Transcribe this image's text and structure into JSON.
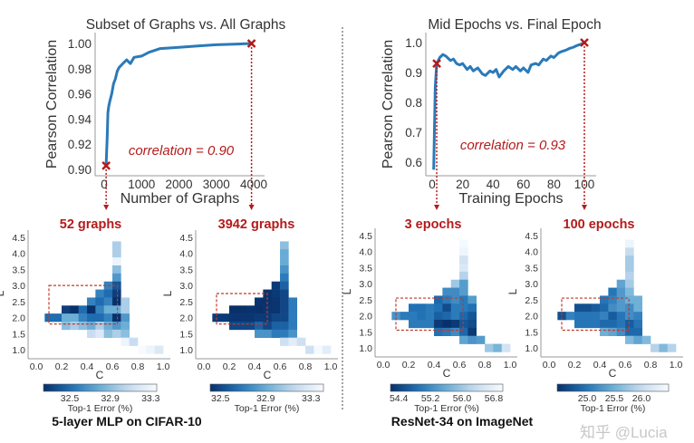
{
  "colors": {
    "line": "#2a7ab9",
    "accent": "#b31b1b",
    "axis": "#9a9a9a",
    "text": "#333333",
    "colormap": [
      "#08306b",
      "#2171b5",
      "#6baed6",
      "#c6dbef",
      "#f7fbff"
    ]
  },
  "watermark": "知乎 @Lucia",
  "groups": [
    {
      "label": "5-layer MLP on CIFAR-10"
    },
    {
      "label": "ResNet-34 on ImageNet"
    }
  ],
  "chart_data": [
    {
      "type": "line",
      "title": "Subset of Graphs vs. All Graphs",
      "xlabel": "Number of Graphs",
      "ylabel": "Pearson Correlation",
      "xticks": [
        0,
        1000,
        2000,
        3000,
        4000
      ],
      "yticks": [
        0.9,
        0.92,
        0.94,
        0.96,
        0.98,
        1.0
      ],
      "ytick_labels": [
        "0.90",
        "0.92",
        "0.94",
        "0.96",
        "0.98",
        "1.00"
      ],
      "annotation": "correlation = 0.90",
      "x": [
        52,
        80,
        100,
        120,
        150,
        200,
        250,
        300,
        350,
        400,
        500,
        600,
        700,
        800,
        1000,
        1200,
        1500,
        2000,
        2500,
        3000,
        3500,
        3942
      ],
      "y": [
        0.903,
        0.925,
        0.945,
        0.95,
        0.954,
        0.96,
        0.968,
        0.972,
        0.978,
        0.981,
        0.984,
        0.987,
        0.984,
        0.989,
        0.99,
        0.993,
        0.996,
        0.997,
        0.998,
        0.999,
        0.9995,
        1.0
      ],
      "markers": [
        {
          "x": 52,
          "y": 0.903
        },
        {
          "x": 3942,
          "y": 1.0
        }
      ]
    },
    {
      "type": "line",
      "title": "Mid Epochs vs. Final Epoch",
      "xlabel": "Training Epochs",
      "ylabel": "Pearson Correlation",
      "xticks": [
        0,
        20,
        40,
        60,
        80,
        100
      ],
      "yticks": [
        0.6,
        0.7,
        0.8,
        0.9,
        1.0
      ],
      "ytick_labels": [
        "0.6",
        "0.7",
        "0.8",
        "0.9",
        "1.0"
      ],
      "annotation": "correlation = 0.93",
      "x": [
        1,
        2,
        3,
        5,
        7,
        9,
        12,
        14,
        16,
        18,
        20,
        23,
        25,
        27,
        30,
        33,
        35,
        38,
        40,
        42,
        44,
        47,
        50,
        53,
        55,
        58,
        60,
        63,
        65,
        68,
        70,
        73,
        75,
        78,
        80,
        83,
        85,
        88,
        90,
        93,
        95,
        98,
        100
      ],
      "y": [
        0.575,
        0.85,
        0.93,
        0.95,
        0.96,
        0.955,
        0.94,
        0.945,
        0.93,
        0.925,
        0.93,
        0.91,
        0.92,
        0.905,
        0.915,
        0.895,
        0.89,
        0.905,
        0.9,
        0.91,
        0.885,
        0.905,
        0.92,
        0.91,
        0.92,
        0.905,
        0.915,
        0.9,
        0.925,
        0.93,
        0.925,
        0.945,
        0.94,
        0.955,
        0.95,
        0.965,
        0.97,
        0.975,
        0.98,
        0.985,
        0.99,
        0.995,
        1.0
      ],
      "markers": [
        {
          "x": 3,
          "y": 0.93
        },
        {
          "x": 100,
          "y": 1.0
        }
      ]
    },
    {
      "type": "heatmap",
      "title": "52 graphs",
      "xlabel": "C",
      "ylabel": "L",
      "xticks": [
        "0.0",
        "0.2",
        "0.4",
        "0.6",
        "0.8",
        "1.0"
      ],
      "yticks": [
        "1.0",
        "1.5",
        "2.0",
        "2.5",
        "3.0",
        "3.5",
        "4.0",
        "4.5"
      ],
      "cell_width": 0.0667,
      "cell_height": 0.25,
      "colorbar": {
        "label": "Top-1 Error (%)",
        "range": [
          32.24,
          33.36
        ],
        "ticks": [
          "32.5",
          "32.9",
          "33.3"
        ]
      },
      "highlight_box": {
        "C": [
          0.1,
          0.64
        ],
        "L": [
          1.8,
          3.0
        ]
      },
      "rows": [
        {
          "L": 4.25,
          "k0": 9,
          "v": [
            33.0
          ]
        },
        {
          "L": 4.0,
          "k0": 9,
          "v": [
            33.0
          ]
        },
        {
          "L": 3.75,
          "k0": 9,
          "v": [
            33.3
          ]
        },
        {
          "L": 3.5,
          "k0": 9,
          "v": [
            32.9
          ]
        },
        {
          "L": 3.25,
          "k0": 9,
          "v": [
            32.7
          ]
        },
        {
          "L": 3.0,
          "k0": 8,
          "v": [
            32.6,
            32.4
          ]
        },
        {
          "L": 2.75,
          "k0": 7,
          "v": [
            32.6,
            32.5,
            32.3
          ]
        },
        {
          "L": 2.5,
          "k0": 6,
          "v": [
            32.6,
            32.5,
            32.6,
            32.2,
            33.0
          ]
        },
        {
          "L": 2.25,
          "k0": 3,
          "v": [
            32.3,
            32.2,
            32.5,
            32.2,
            32.6,
            32.8,
            32.8,
            33.0
          ]
        },
        {
          "L": 2.0,
          "k0": 1,
          "v": [
            32.5,
            32.5,
            32.8,
            32.8,
            32.6,
            32.5,
            32.5,
            32.6,
            32.2,
            32.7
          ]
        },
        {
          "L": 1.75,
          "k0": 3,
          "v": [
            32.9,
            33.0,
            32.9,
            32.8,
            33.0,
            32.8,
            32.7,
            32.8
          ]
        },
        {
          "L": 1.5,
          "k0": 6,
          "v": [
            33.1,
            33.2,
            32.9,
            33.0,
            32.9
          ]
        },
        {
          "L": 1.25,
          "k0": 10,
          "v": [
            33.3,
            33.1
          ]
        },
        {
          "L": 1.0,
          "k0": 12,
          "v": [
            33.4,
            33.3,
            33.2
          ]
        }
      ]
    },
    {
      "type": "heatmap",
      "title": "3942 graphs",
      "xlabel": "C",
      "ylabel": "L",
      "xticks": [
        "0.0",
        "0.2",
        "0.4",
        "0.6",
        "0.8",
        "1.0"
      ],
      "yticks": [
        "1.0",
        "1.5",
        "2.0",
        "2.5",
        "3.0",
        "3.5",
        "4.0",
        "4.5"
      ],
      "cell_width": 0.0667,
      "cell_height": 0.25,
      "colorbar": {
        "label": "Top-1 Error (%)",
        "range": [
          32.41,
          33.41
        ],
        "ticks": [
          "32.5",
          "32.9",
          "33.3"
        ]
      },
      "highlight_box": {
        "C": [
          0.1,
          0.5
        ],
        "L": [
          1.8,
          2.75
        ]
      },
      "rows": [
        {
          "L": 4.25,
          "k0": 9,
          "v": [
            33.0
          ]
        },
        {
          "L": 4.0,
          "k0": 9,
          "v": [
            32.9
          ]
        },
        {
          "L": 3.75,
          "k0": 9,
          "v": [
            32.9
          ]
        },
        {
          "L": 3.5,
          "k0": 9,
          "v": [
            32.8
          ]
        },
        {
          "L": 3.25,
          "k0": 9,
          "v": [
            32.7
          ]
        },
        {
          "L": 3.0,
          "k0": 8,
          "v": [
            32.45,
            32.6
          ]
        },
        {
          "L": 2.75,
          "k0": 7,
          "v": [
            32.42,
            32.45,
            32.5
          ]
        },
        {
          "L": 2.5,
          "k0": 6,
          "v": [
            32.42,
            32.42,
            32.43,
            32.5,
            32.7
          ]
        },
        {
          "L": 2.25,
          "k0": 3,
          "v": [
            32.41,
            32.41,
            32.42,
            32.41,
            32.43,
            32.43,
            32.5,
            32.7
          ]
        },
        {
          "L": 2.0,
          "k0": 1,
          "v": [
            32.45,
            32.45,
            32.43,
            32.43,
            32.43,
            32.45,
            32.45,
            32.5,
            32.5,
            32.7
          ]
        },
        {
          "L": 1.75,
          "k0": 3,
          "v": [
            32.5,
            32.5,
            32.5,
            32.6,
            32.5,
            32.6,
            32.6,
            32.7
          ]
        },
        {
          "L": 1.5,
          "k0": 6,
          "v": [
            32.8,
            32.8,
            32.7,
            32.7,
            32.8
          ]
        },
        {
          "L": 1.25,
          "k0": 9,
          "v": [
            33.2,
            33.3,
            33.2
          ]
        },
        {
          "L": 1.0,
          "k0": 12,
          "v": [
            33.2,
            33.4,
            33.3
          ]
        }
      ]
    },
    {
      "type": "heatmap",
      "title": "3 epochs",
      "xlabel": "C",
      "ylabel": "L",
      "xticks": [
        "0.0",
        "0.2",
        "0.4",
        "0.6",
        "0.8",
        "1.0"
      ],
      "yticks": [
        "1.0",
        "1.5",
        "2.0",
        "2.5",
        "3.0",
        "3.5",
        "4.0",
        "4.5"
      ],
      "cell_width": 0.0667,
      "cell_height": 0.25,
      "colorbar": {
        "label": "Top-1 Error (%)",
        "range": [
          54.19,
          57.03
        ],
        "ticks": [
          "54.4",
          "55.2",
          "56.0",
          "56.8"
        ]
      },
      "highlight_box": {
        "C": [
          0.1,
          0.63
        ],
        "L": [
          1.55,
          2.55
        ]
      },
      "rows": [
        {
          "L": 4.25,
          "k0": 9,
          "v": [
            57.0
          ]
        },
        {
          "L": 4.0,
          "k0": 9,
          "v": [
            56.9
          ]
        },
        {
          "L": 3.75,
          "k0": 9,
          "v": [
            56.5
          ]
        },
        {
          "L": 3.5,
          "k0": 9,
          "v": [
            56.6
          ]
        },
        {
          "L": 3.25,
          "k0": 9,
          "v": [
            56.2
          ]
        },
        {
          "L": 3.0,
          "k0": 8,
          "v": [
            56.0,
            55.4
          ]
        },
        {
          "L": 2.75,
          "k0": 7,
          "v": [
            55.2,
            55.2,
            55.4
          ]
        },
        {
          "L": 2.5,
          "k0": 6,
          "v": [
            54.8,
            55.0,
            55.2,
            55.0,
            55.4
          ]
        },
        {
          "L": 2.25,
          "k0": 3,
          "v": [
            54.9,
            54.9,
            55.0,
            54.9,
            54.5,
            55.0,
            55.0,
            54.9
          ]
        },
        {
          "L": 2.0,
          "k0": 1,
          "v": [
            55.3,
            55.0,
            55.0,
            54.9,
            55.0,
            54.7,
            54.8,
            55.0,
            54.8,
            54.6
          ]
        },
        {
          "L": 1.75,
          "k0": 3,
          "v": [
            55.0,
            55.0,
            55.0,
            54.3,
            54.2,
            54.3,
            54.6,
            54.5
          ]
        },
        {
          "L": 1.5,
          "k0": 6,
          "v": [
            54.9,
            55.0,
            55.2,
            54.8,
            54.3
          ]
        },
        {
          "L": 1.25,
          "k0": 9,
          "v": [
            55.5,
            55.3,
            55.4
          ]
        },
        {
          "L": 1.0,
          "k0": 12,
          "v": [
            56.0,
            55.7,
            56.5
          ]
        }
      ]
    },
    {
      "type": "heatmap",
      "title": "100 epochs",
      "xlabel": "C",
      "ylabel": "L",
      "xticks": [
        "0.0",
        "0.2",
        "0.4",
        "0.6",
        "0.8",
        "1.0"
      ],
      "yticks": [
        "1.0",
        "1.5",
        "2.0",
        "2.5",
        "3.0",
        "3.5",
        "4.0",
        "4.5"
      ],
      "cell_width": 0.0667,
      "cell_height": 0.25,
      "colorbar": {
        "label": "Top-1 Error (%)",
        "range": [
          24.45,
          26.5
        ],
        "ticks": [
          "25.0",
          "25.5",
          "26.0"
        ]
      },
      "highlight_box": {
        "C": [
          0.1,
          0.63
        ],
        "L": [
          1.55,
          2.55
        ]
      },
      "rows": [
        {
          "L": 4.25,
          "k0": 9,
          "v": [
            26.4
          ]
        },
        {
          "L": 4.0,
          "k0": 9,
          "v": [
            26.0
          ]
        },
        {
          "L": 3.75,
          "k0": 9,
          "v": [
            25.8
          ]
        },
        {
          "L": 3.5,
          "k0": 9,
          "v": [
            25.8
          ]
        },
        {
          "L": 3.25,
          "k0": 9,
          "v": [
            25.9
          ]
        },
        {
          "L": 3.0,
          "k0": 8,
          "v": [
            25.4,
            25.8
          ]
        },
        {
          "L": 2.75,
          "k0": 7,
          "v": [
            25.0,
            25.3,
            25.6
          ]
        },
        {
          "L": 2.5,
          "k0": 6,
          "v": [
            25.0,
            25.1,
            25.3,
            25.5,
            25.5
          ]
        },
        {
          "L": 2.25,
          "k0": 3,
          "v": [
            24.7,
            24.7,
            24.8,
            24.9,
            25.2,
            25.3,
            25.2,
            25.5
          ]
        },
        {
          "L": 2.0,
          "k0": 1,
          "v": [
            24.7,
            25.1,
            25.0,
            25.0,
            25.0,
            25.1,
            24.8,
            25.0,
            25.2,
            25.1
          ]
        },
        {
          "L": 1.75,
          "k0": 3,
          "v": [
            25.0,
            25.0,
            25.0,
            24.9,
            24.9,
            25.0,
            24.8,
            25.0
          ]
        },
        {
          "L": 1.5,
          "k0": 6,
          "v": [
            25.5,
            25.4,
            25.2,
            24.9,
            24.9
          ]
        },
        {
          "L": 1.25,
          "k0": 9,
          "v": [
            25.6,
            25.4,
            25.6
          ]
        },
        {
          "L": 1.0,
          "k0": 12,
          "v": [
            25.9,
            25.6,
            25.9
          ]
        }
      ]
    }
  ]
}
